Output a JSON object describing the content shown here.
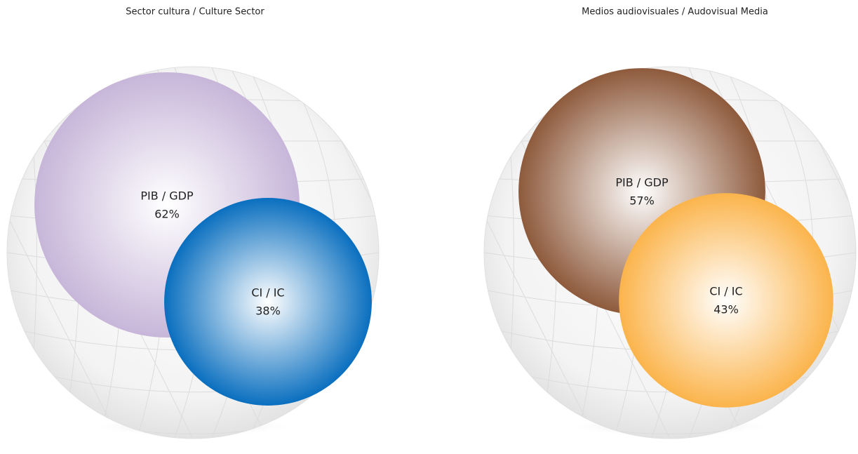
{
  "chart_data": [
    {
      "type": "circles",
      "title": "Sector cultura / Culture Sector",
      "categories": [
        "PIB / GDP",
        "CI / IC"
      ],
      "values": [
        62,
        38
      ],
      "value_labels": [
        "62%",
        "38%"
      ],
      "colors": [
        "#c7b6d9",
        "#0a6fbf"
      ]
    },
    {
      "type": "circles",
      "title": "Medios audiovisuales / Audovisual Media",
      "categories": [
        "PIB / GDP",
        "CI / IC"
      ],
      "values": [
        57,
        43
      ],
      "value_labels": [
        "57%",
        "43%"
      ],
      "colors": [
        "#8e5a3c",
        "#fbb44c"
      ]
    }
  ]
}
